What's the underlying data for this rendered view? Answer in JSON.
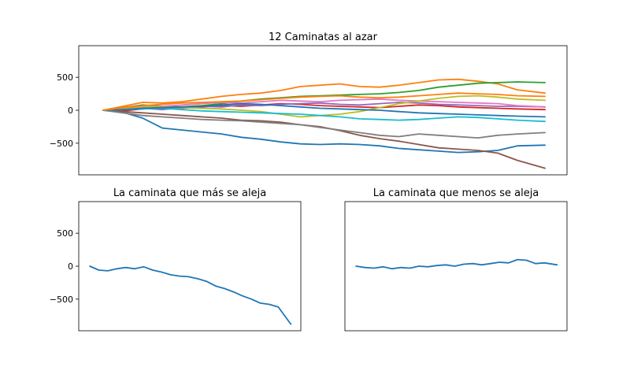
{
  "chart_data": [
    {
      "type": "line",
      "title": "12 Caminatas al azar",
      "xlabel": "",
      "ylabel": "",
      "x_ticks_visible": false,
      "ylim": [
        -980,
        980
      ],
      "yticks": [
        500,
        0,
        -500
      ],
      "ytick_labels": [
        "500",
        "0",
        "−500"
      ],
      "grid": false,
      "x": [
        0,
        25,
        50,
        75,
        100,
        125,
        150,
        175,
        200,
        225,
        250,
        275,
        300,
        325,
        350,
        375,
        400,
        425,
        450,
        475,
        500,
        525,
        560
      ],
      "series": [
        {
          "color": "#1f77b4",
          "values": [
            0,
            -30,
            -120,
            -270,
            -300,
            -330,
            -360,
            -410,
            -440,
            -480,
            -510,
            -520,
            -510,
            -520,
            -540,
            -580,
            -600,
            -620,
            -640,
            -630,
            -610,
            -540,
            -530
          ]
        },
        {
          "color": "#ff7f0e",
          "values": [
            0,
            60,
            120,
            110,
            130,
            170,
            210,
            240,
            260,
            300,
            360,
            380,
            400,
            360,
            350,
            380,
            420,
            460,
            470,
            440,
            400,
            310,
            260
          ]
        },
        {
          "color": "#2ca02c",
          "values": [
            0,
            40,
            80,
            60,
            50,
            70,
            100,
            140,
            170,
            190,
            210,
            220,
            230,
            240,
            250,
            270,
            300,
            350,
            380,
            410,
            420,
            430,
            420
          ]
        },
        {
          "color": "#d62728",
          "values": [
            0,
            -10,
            20,
            40,
            30,
            50,
            70,
            60,
            80,
            100,
            90,
            70,
            60,
            50,
            40,
            60,
            80,
            70,
            50,
            40,
            30,
            20,
            10
          ]
        },
        {
          "color": "#9467bd",
          "values": [
            0,
            20,
            30,
            10,
            40,
            60,
            50,
            80,
            70,
            90,
            100,
            110,
            90,
            80,
            100,
            120,
            110,
            90,
            80,
            70,
            60,
            60,
            50
          ]
        },
        {
          "color": "#8c564b",
          "values": [
            0,
            -20,
            -40,
            -60,
            -80,
            -100,
            -120,
            -150,
            -160,
            -180,
            -220,
            -250,
            -310,
            -380,
            -430,
            -470,
            -520,
            -570,
            -590,
            -610,
            -650,
            -760,
            -880
          ]
        },
        {
          "color": "#e377c2",
          "values": [
            0,
            20,
            50,
            60,
            80,
            100,
            120,
            110,
            130,
            150,
            140,
            130,
            150,
            160,
            170,
            150,
            140,
            130,
            120,
            110,
            100,
            70,
            50
          ]
        },
        {
          "color": "#7f7f7f",
          "values": [
            0,
            -40,
            -80,
            -100,
            -120,
            -140,
            -150,
            -160,
            -180,
            -200,
            -220,
            -260,
            -300,
            -340,
            -380,
            -400,
            -360,
            -380,
            -400,
            -420,
            -380,
            -360,
            -340
          ]
        },
        {
          "color": "#bcbd22",
          "values": [
            0,
            30,
            60,
            50,
            40,
            30,
            20,
            0,
            -20,
            -60,
            -100,
            -80,
            -60,
            -20,
            40,
            100,
            140,
            180,
            210,
            220,
            200,
            170,
            150
          ]
        },
        {
          "color": "#17becf",
          "values": [
            0,
            10,
            20,
            30,
            10,
            -10,
            -20,
            -30,
            -40,
            -50,
            -60,
            -80,
            -100,
            -130,
            -140,
            -150,
            -140,
            -120,
            -100,
            -110,
            -130,
            -150,
            -170
          ]
        },
        {
          "color": "#1f77b4",
          "values": [
            0,
            10,
            30,
            40,
            50,
            60,
            80,
            100,
            90,
            70,
            50,
            30,
            20,
            10,
            0,
            -20,
            -40,
            -50,
            -60,
            -70,
            -80,
            -90,
            -100
          ]
        },
        {
          "color": "#ff7f0e",
          "values": [
            0,
            40,
            70,
            90,
            110,
            120,
            130,
            140,
            160,
            180,
            200,
            210,
            220,
            200,
            190,
            200,
            220,
            240,
            260,
            250,
            240,
            220,
            210
          ]
        }
      ]
    },
    {
      "type": "line",
      "title": "La caminata que más se aleja",
      "xlabel": "",
      "ylabel": "",
      "x_ticks_visible": false,
      "ylim": [
        -980,
        980
      ],
      "yticks": [
        500,
        0,
        -500
      ],
      "ytick_labels": [
        "500",
        "0",
        "−500"
      ],
      "grid": false,
      "x": [
        0,
        25,
        50,
        75,
        100,
        125,
        150,
        175,
        200,
        225,
        250,
        275,
        300,
        325,
        350,
        375,
        400,
        425,
        450,
        475,
        500,
        525,
        560
      ],
      "series": [
        {
          "color": "#1f77b4",
          "values": [
            0,
            -60,
            -70,
            -40,
            -20,
            -40,
            -10,
            -60,
            -90,
            -130,
            -150,
            -160,
            -190,
            -230,
            -300,
            -340,
            -390,
            -450,
            -500,
            -560,
            -580,
            -620,
            -880
          ]
        }
      ]
    },
    {
      "type": "line",
      "title": "La caminata que menos se aleja",
      "xlabel": "",
      "ylabel": "",
      "x_ticks_visible": false,
      "ylim": [
        -980,
        980
      ],
      "yticks": [],
      "ytick_labels": [],
      "grid": false,
      "x": [
        0,
        25,
        50,
        75,
        100,
        125,
        150,
        175,
        200,
        225,
        250,
        275,
        300,
        325,
        350,
        375,
        400,
        425,
        450,
        475,
        500,
        525,
        560
      ],
      "series": [
        {
          "color": "#1f77b4",
          "values": [
            0,
            -20,
            -30,
            -10,
            -40,
            -20,
            -30,
            0,
            -10,
            10,
            20,
            0,
            30,
            40,
            20,
            40,
            60,
            50,
            100,
            90,
            40,
            50,
            20
          ]
        }
      ]
    }
  ]
}
